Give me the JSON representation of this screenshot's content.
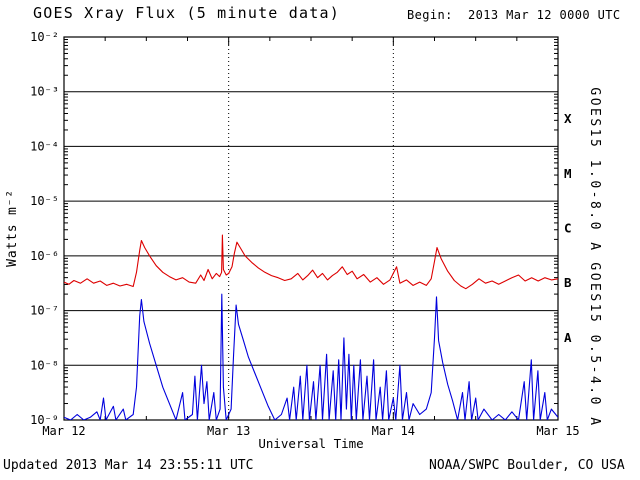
{
  "header": {
    "title": "GOES Xray Flux (5 minute data)",
    "begin": "Begin:  2013 Mar 12 0000 UTC"
  },
  "footer": {
    "updated": "Updated 2013 Mar 14 23:55:11 UTC",
    "credit": "NOAA/SWPC Boulder, CO USA"
  },
  "chart_data": {
    "type": "line",
    "title": "GOES Xray Flux (5 minute data)",
    "xlabel": "Universal Time",
    "ylabel": "Watts m⁻²",
    "x_range_days": [
      0,
      3
    ],
    "x_ticks_days": [
      0,
      1,
      2,
      3
    ],
    "x_ticklabels": [
      "Mar 12",
      "Mar 13",
      "Mar 14",
      "Mar 15"
    ],
    "x_minor_tick_step_days": 0.25,
    "y_log_range": [
      -9,
      -2
    ],
    "y_tick_exponents": [
      -2,
      -3,
      -4,
      -5,
      -6,
      -7,
      -8,
      -9
    ],
    "y_ticklabels": [
      "10⁻²",
      "10⁻³",
      "10⁻⁴",
      "10⁻⁵",
      "10⁻⁶",
      "10⁻⁷",
      "10⁻⁸",
      "10⁻⁹"
    ],
    "flux_class_labels": [
      {
        "label": "X",
        "log_center": -3.5
      },
      {
        "label": "M",
        "log_center": -4.5
      },
      {
        "label": "C",
        "log_center": -5.5
      },
      {
        "label": "B",
        "log_center": -6.5
      },
      {
        "label": "A",
        "log_center": -7.5
      }
    ],
    "grid": {
      "horizontal_decades": "solid",
      "vertical_days": "dotted",
      "legend_position": "right-rotated"
    },
    "colors": {
      "long": "#dd0000",
      "short": "#0000dd",
      "axis": "#000000",
      "background": "#ffffff"
    },
    "series": [
      {
        "name": "GOES15 1.0-8.0 A",
        "color": "#dd0000",
        "points_t_log10flux": [
          [
            0.0,
            -6.48
          ],
          [
            0.03,
            -6.52
          ],
          [
            0.06,
            -6.45
          ],
          [
            0.1,
            -6.5
          ],
          [
            0.14,
            -6.42
          ],
          [
            0.18,
            -6.5
          ],
          [
            0.22,
            -6.46
          ],
          [
            0.26,
            -6.54
          ],
          [
            0.3,
            -6.5
          ],
          [
            0.34,
            -6.55
          ],
          [
            0.38,
            -6.52
          ],
          [
            0.42,
            -6.56
          ],
          [
            0.44,
            -6.3
          ],
          [
            0.46,
            -5.9
          ],
          [
            0.47,
            -5.72
          ],
          [
            0.49,
            -5.85
          ],
          [
            0.52,
            -6.0
          ],
          [
            0.56,
            -6.18
          ],
          [
            0.6,
            -6.3
          ],
          [
            0.64,
            -6.38
          ],
          [
            0.68,
            -6.44
          ],
          [
            0.72,
            -6.4
          ],
          [
            0.76,
            -6.48
          ],
          [
            0.8,
            -6.5
          ],
          [
            0.83,
            -6.35
          ],
          [
            0.85,
            -6.45
          ],
          [
            0.875,
            -6.25
          ],
          [
            0.9,
            -6.42
          ],
          [
            0.925,
            -6.32
          ],
          [
            0.945,
            -6.38
          ],
          [
            0.957,
            -6.3
          ],
          [
            0.962,
            -5.62
          ],
          [
            0.968,
            -6.25
          ],
          [
            0.985,
            -6.35
          ],
          [
            1.0,
            -6.32
          ],
          [
            1.02,
            -6.2
          ],
          [
            1.035,
            -5.95
          ],
          [
            1.05,
            -5.75
          ],
          [
            1.07,
            -5.85
          ],
          [
            1.1,
            -6.0
          ],
          [
            1.14,
            -6.12
          ],
          [
            1.18,
            -6.22
          ],
          [
            1.22,
            -6.3
          ],
          [
            1.26,
            -6.36
          ],
          [
            1.3,
            -6.4
          ],
          [
            1.34,
            -6.45
          ],
          [
            1.38,
            -6.42
          ],
          [
            1.42,
            -6.32
          ],
          [
            1.45,
            -6.44
          ],
          [
            1.48,
            -6.36
          ],
          [
            1.51,
            -6.26
          ],
          [
            1.54,
            -6.4
          ],
          [
            1.57,
            -6.32
          ],
          [
            1.6,
            -6.44
          ],
          [
            1.63,
            -6.36
          ],
          [
            1.66,
            -6.3
          ],
          [
            1.69,
            -6.2
          ],
          [
            1.72,
            -6.34
          ],
          [
            1.75,
            -6.28
          ],
          [
            1.78,
            -6.42
          ],
          [
            1.82,
            -6.34
          ],
          [
            1.86,
            -6.48
          ],
          [
            1.9,
            -6.4
          ],
          [
            1.94,
            -6.52
          ],
          [
            1.98,
            -6.44
          ],
          [
            2.02,
            -6.2
          ],
          [
            2.04,
            -6.5
          ],
          [
            2.08,
            -6.44
          ],
          [
            2.12,
            -6.54
          ],
          [
            2.16,
            -6.48
          ],
          [
            2.2,
            -6.54
          ],
          [
            2.23,
            -6.42
          ],
          [
            2.25,
            -6.1
          ],
          [
            2.265,
            -5.85
          ],
          [
            2.29,
            -6.05
          ],
          [
            2.33,
            -6.28
          ],
          [
            2.37,
            -6.45
          ],
          [
            2.41,
            -6.55
          ],
          [
            2.44,
            -6.6
          ],
          [
            2.48,
            -6.52
          ],
          [
            2.52,
            -6.42
          ],
          [
            2.56,
            -6.5
          ],
          [
            2.6,
            -6.46
          ],
          [
            2.64,
            -6.52
          ],
          [
            2.68,
            -6.46
          ],
          [
            2.72,
            -6.4
          ],
          [
            2.76,
            -6.35
          ],
          [
            2.8,
            -6.46
          ],
          [
            2.84,
            -6.4
          ],
          [
            2.88,
            -6.46
          ],
          [
            2.92,
            -6.4
          ],
          [
            2.96,
            -6.44
          ],
          [
            3.0,
            -6.42
          ]
        ]
      },
      {
        "name": "GOES15 0.5-4.0 A",
        "color": "#0000dd",
        "points_t_log10flux": [
          [
            0.0,
            -8.95
          ],
          [
            0.04,
            -9.0
          ],
          [
            0.08,
            -8.9
          ],
          [
            0.12,
            -9.0
          ],
          [
            0.16,
            -8.95
          ],
          [
            0.2,
            -8.85
          ],
          [
            0.22,
            -9.0
          ],
          [
            0.24,
            -8.6
          ],
          [
            0.255,
            -9.0
          ],
          [
            0.3,
            -8.75
          ],
          [
            0.315,
            -9.0
          ],
          [
            0.36,
            -8.8
          ],
          [
            0.375,
            -9.0
          ],
          [
            0.42,
            -8.9
          ],
          [
            0.44,
            -8.4
          ],
          [
            0.46,
            -7.1
          ],
          [
            0.47,
            -6.8
          ],
          [
            0.485,
            -7.2
          ],
          [
            0.52,
            -7.6
          ],
          [
            0.56,
            -8.0
          ],
          [
            0.6,
            -8.4
          ],
          [
            0.64,
            -8.7
          ],
          [
            0.68,
            -9.0
          ],
          [
            0.72,
            -8.5
          ],
          [
            0.735,
            -9.0
          ],
          [
            0.78,
            -8.9
          ],
          [
            0.795,
            -8.2
          ],
          [
            0.81,
            -9.0
          ],
          [
            0.835,
            -8.0
          ],
          [
            0.85,
            -8.7
          ],
          [
            0.868,
            -8.3
          ],
          [
            0.882,
            -9.0
          ],
          [
            0.91,
            -8.5
          ],
          [
            0.925,
            -9.0
          ],
          [
            0.948,
            -8.8
          ],
          [
            0.958,
            -6.7
          ],
          [
            0.968,
            -8.4
          ],
          [
            0.985,
            -9.0
          ],
          [
            1.015,
            -8.8
          ],
          [
            1.03,
            -7.8
          ],
          [
            1.045,
            -6.9
          ],
          [
            1.06,
            -7.25
          ],
          [
            1.09,
            -7.55
          ],
          [
            1.12,
            -7.85
          ],
          [
            1.16,
            -8.15
          ],
          [
            1.2,
            -8.45
          ],
          [
            1.24,
            -8.75
          ],
          [
            1.28,
            -9.0
          ],
          [
            1.32,
            -8.9
          ],
          [
            1.355,
            -8.6
          ],
          [
            1.37,
            -9.0
          ],
          [
            1.395,
            -8.4
          ],
          [
            1.41,
            -9.0
          ],
          [
            1.435,
            -8.2
          ],
          [
            1.45,
            -9.0
          ],
          [
            1.475,
            -8.0
          ],
          [
            1.49,
            -9.0
          ],
          [
            1.515,
            -8.3
          ],
          [
            1.53,
            -9.0
          ],
          [
            1.555,
            -8.0
          ],
          [
            1.57,
            -9.0
          ],
          [
            1.595,
            -7.8
          ],
          [
            1.61,
            -9.0
          ],
          [
            1.635,
            -8.1
          ],
          [
            1.65,
            -9.0
          ],
          [
            1.668,
            -7.9
          ],
          [
            1.682,
            -9.0
          ],
          [
            1.7,
            -7.5
          ],
          [
            1.715,
            -8.8
          ],
          [
            1.73,
            -7.8
          ],
          [
            1.745,
            -9.0
          ],
          [
            1.76,
            -8.0
          ],
          [
            1.775,
            -9.0
          ],
          [
            1.8,
            -7.9
          ],
          [
            1.815,
            -9.0
          ],
          [
            1.84,
            -8.2
          ],
          [
            1.855,
            -9.0
          ],
          [
            1.88,
            -7.9
          ],
          [
            1.895,
            -9.0
          ],
          [
            1.92,
            -8.4
          ],
          [
            1.935,
            -9.0
          ],
          [
            1.958,
            -8.1
          ],
          [
            1.972,
            -9.0
          ],
          [
            2.0,
            -8.6
          ],
          [
            2.015,
            -9.0
          ],
          [
            2.04,
            -8.0
          ],
          [
            2.055,
            -9.0
          ],
          [
            2.08,
            -8.5
          ],
          [
            2.095,
            -9.0
          ],
          [
            2.12,
            -8.7
          ],
          [
            2.16,
            -8.9
          ],
          [
            2.2,
            -8.8
          ],
          [
            2.23,
            -8.5
          ],
          [
            2.25,
            -7.5
          ],
          [
            2.262,
            -6.75
          ],
          [
            2.275,
            -7.55
          ],
          [
            2.3,
            -7.95
          ],
          [
            2.33,
            -8.35
          ],
          [
            2.36,
            -8.65
          ],
          [
            2.39,
            -9.0
          ],
          [
            2.42,
            -8.5
          ],
          [
            2.435,
            -9.0
          ],
          [
            2.46,
            -8.3
          ],
          [
            2.475,
            -9.0
          ],
          [
            2.5,
            -8.6
          ],
          [
            2.515,
            -9.0
          ],
          [
            2.55,
            -8.8
          ],
          [
            2.6,
            -9.0
          ],
          [
            2.64,
            -8.9
          ],
          [
            2.68,
            -9.0
          ],
          [
            2.72,
            -8.85
          ],
          [
            2.76,
            -9.0
          ],
          [
            2.795,
            -8.3
          ],
          [
            2.81,
            -9.0
          ],
          [
            2.838,
            -7.9
          ],
          [
            2.852,
            -9.0
          ],
          [
            2.878,
            -8.1
          ],
          [
            2.892,
            -9.0
          ],
          [
            2.92,
            -8.5
          ],
          [
            2.935,
            -9.0
          ],
          [
            2.96,
            -8.8
          ],
          [
            3.0,
            -8.95
          ]
        ]
      }
    ]
  }
}
